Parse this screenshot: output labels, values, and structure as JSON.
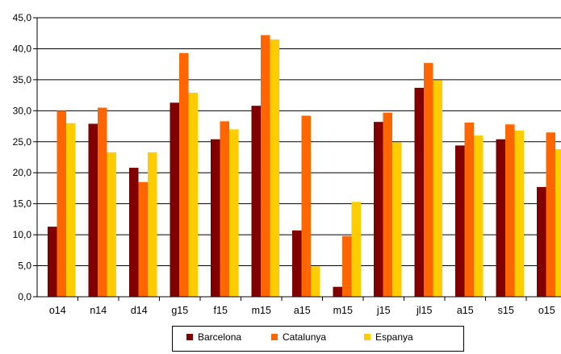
{
  "chart_data": {
    "type": "bar",
    "categories": [
      "o14",
      "n14",
      "d14",
      "g15",
      "f15",
      "m15",
      "a15",
      "m15",
      "j15",
      "jl15",
      "a15",
      "s15",
      "o15"
    ],
    "series": [
      {
        "name": "Barcelona",
        "color": "#800000",
        "values": [
          11.3,
          27.9,
          20.8,
          31.3,
          25.4,
          30.8,
          10.7,
          1.6,
          28.2,
          33.7,
          24.4,
          25.4,
          17.7
        ]
      },
      {
        "name": "Catalunya",
        "color": "#ff6600",
        "values": [
          30.0,
          30.5,
          18.5,
          39.3,
          28.3,
          42.2,
          29.2,
          9.8,
          29.7,
          37.7,
          28.1,
          27.8,
          26.5
        ]
      },
      {
        "name": "Espanya",
        "color": "#ffcc00",
        "values": [
          28.0,
          23.3,
          23.3,
          32.9,
          27.0,
          41.5,
          4.9,
          15.3,
          24.9,
          34.9,
          26.0,
          26.8,
          23.8
        ]
      }
    ],
    "yticks": [
      "0,0",
      "5,0",
      "10,0",
      "15,0",
      "20,0",
      "25,0",
      "30,0",
      "35,0",
      "40,0",
      "45,0"
    ],
    "ylim": [
      0,
      45
    ],
    "grid": true,
    "legend_position": "bottom"
  }
}
